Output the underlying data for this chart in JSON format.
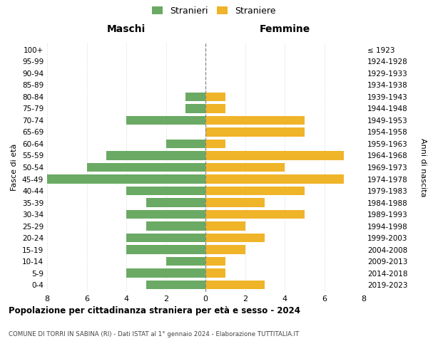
{
  "age_groups": [
    "100+",
    "95-99",
    "90-94",
    "85-89",
    "80-84",
    "75-79",
    "70-74",
    "65-69",
    "60-64",
    "55-59",
    "50-54",
    "45-49",
    "40-44",
    "35-39",
    "30-34",
    "25-29",
    "20-24",
    "15-19",
    "10-14",
    "5-9",
    "0-4"
  ],
  "birth_years": [
    "≤ 1923",
    "1924-1928",
    "1929-1933",
    "1934-1938",
    "1939-1943",
    "1944-1948",
    "1949-1953",
    "1954-1958",
    "1959-1963",
    "1964-1968",
    "1969-1973",
    "1974-1978",
    "1979-1983",
    "1984-1988",
    "1989-1993",
    "1994-1998",
    "1999-2003",
    "2004-2008",
    "2009-2013",
    "2014-2018",
    "2019-2023"
  ],
  "maschi": [
    0,
    0,
    0,
    0,
    1,
    1,
    4,
    0,
    2,
    5,
    6,
    9,
    4,
    3,
    4,
    3,
    4,
    4,
    2,
    4,
    3
  ],
  "femmine": [
    0,
    0,
    0,
    0,
    1,
    1,
    5,
    5,
    1,
    7,
    4,
    7,
    5,
    3,
    5,
    2,
    3,
    2,
    1,
    1,
    3
  ],
  "maschi_color": "#6aaa64",
  "femmine_color": "#f0b429",
  "title_main": "Popolazione per cittadinanza straniera per età e sesso - 2024",
  "title_sub": "COMUNE DI TORRI IN SABINA (RI) - Dati ISTAT al 1° gennaio 2024 - Elaborazione TUTTITALIA.IT",
  "legend_maschi": "Stranieri",
  "legend_femmine": "Straniere",
  "xlabel_left": "Maschi",
  "xlabel_right": "Femmine",
  "ylabel_left": "Fasce di età",
  "ylabel_right": "Anni di nascita",
  "xlim": 8,
  "bg_color": "#ffffff",
  "grid_color": "#d0d0d0"
}
